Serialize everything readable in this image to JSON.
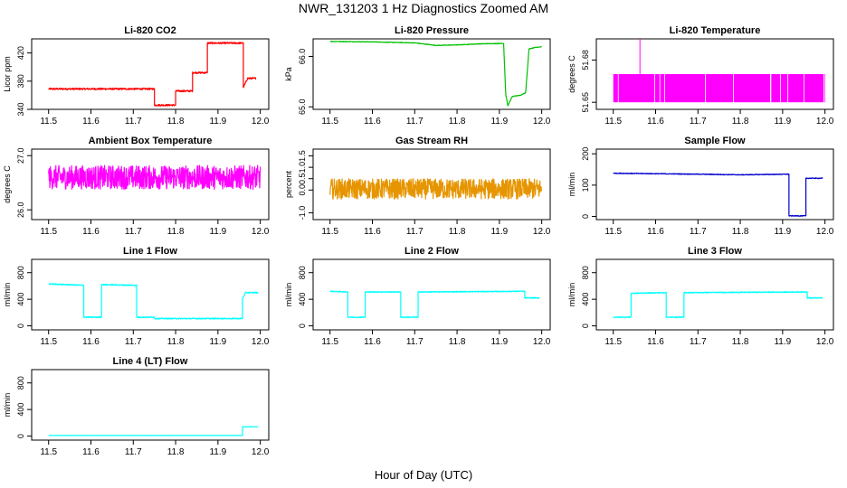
{
  "title": "NWR_131203  1 Hz Diagnostics Zoomed AM",
  "xlabel": "Hour of Day (UTC)",
  "chart_data": [
    {
      "type": "line",
      "title": "Li-820 CO2",
      "ylabel": "Licor ppm",
      "color": "#ff0000",
      "xlim": [
        11.46,
        12.02
      ],
      "ylim": [
        340,
        440
      ],
      "xticks": [
        11.5,
        11.6,
        11.7,
        11.8,
        11.9,
        12.0
      ],
      "xtick_labels": [
        "11.5",
        "11.6",
        "11.7",
        "11.8",
        "11.9",
        "12.0"
      ],
      "yticks": [
        340,
        380,
        420
      ],
      "ytick_labels": [
        "340",
        "380",
        "420"
      ],
      "noise": 1.2,
      "series": [
        {
          "x": [
            11.5,
            11.75,
            11.75,
            11.8,
            11.8,
            11.84,
            11.84,
            11.875,
            11.875,
            11.96,
            11.96,
            11.97,
            11.99
          ],
          "y": [
            369,
            369,
            346,
            346,
            366,
            366,
            392,
            392,
            434,
            434,
            371,
            384,
            384
          ]
        }
      ]
    },
    {
      "type": "line",
      "title": "Li-820 Pressure",
      "ylabel": "kPa",
      "color": "#00c000",
      "xlim": [
        11.46,
        12.02
      ],
      "ylim": [
        64.95,
        66.35
      ],
      "xticks": [
        11.5,
        11.6,
        11.7,
        11.8,
        11.9,
        12.0
      ],
      "xtick_labels": [
        "11.5",
        "11.6",
        "11.7",
        "11.8",
        "11.9",
        "12.0"
      ],
      "yticks": [
        65.0,
        66.0
      ],
      "ytick_labels": [
        "65.0",
        "66.0"
      ],
      "noise": 0.006,
      "series": [
        {
          "x": [
            11.5,
            11.6,
            11.7,
            11.75,
            11.8,
            11.85,
            11.91,
            11.915,
            11.92,
            11.93,
            11.94,
            11.95,
            11.962,
            11.97,
            11.985,
            12.0
          ],
          "y": [
            66.3,
            66.29,
            66.27,
            66.22,
            66.23,
            66.25,
            66.26,
            65.25,
            65.02,
            65.2,
            65.22,
            65.23,
            65.28,
            66.15,
            66.18,
            66.19
          ]
        }
      ]
    },
    {
      "type": "line",
      "title": "Li-820 Temperature",
      "ylabel": "degrees C",
      "color": "#ff00ff",
      "xlim": [
        11.46,
        12.02
      ],
      "ylim": [
        51.645,
        51.695
      ],
      "xticks": [
        11.5,
        11.6,
        11.7,
        11.8,
        11.9,
        12.0
      ],
      "xtick_labels": [
        "11.5",
        "11.6",
        "11.7",
        "11.8",
        "11.9",
        "12.0"
      ],
      "yticks": [
        51.65,
        51.68
      ],
      "ytick_labels": [
        "51.65",
        "51.68"
      ],
      "band": {
        "x": [
          11.5,
          12.0
        ],
        "low": 51.65,
        "high": 51.67
      },
      "spike": {
        "x": 11.563,
        "y": 51.695
      }
    },
    {
      "type": "line",
      "title": "Ambient Box Temperature",
      "ylabel": "degrees C",
      "color": "#ff00ff",
      "xlim": [
        11.46,
        12.02
      ],
      "ylim": [
        25.82,
        27.12
      ],
      "xticks": [
        11.5,
        11.6,
        11.7,
        11.8,
        11.9,
        12.0
      ],
      "xtick_labels": [
        "11.5",
        "11.6",
        "11.7",
        "11.8",
        "11.9",
        "12.0"
      ],
      "yticks": [
        26.0,
        27.0
      ],
      "ytick_labels": [
        "26.0",
        "27.0"
      ],
      "noise": 0.22,
      "series": [
        {
          "x": [
            11.5,
            12.0
          ],
          "y": [
            26.6,
            26.6
          ]
        }
      ]
    },
    {
      "type": "line",
      "title": "Gas Stream RH",
      "ylabel": "percent",
      "color": "#e69500",
      "xlim": [
        11.46,
        12.02
      ],
      "ylim": [
        -1.3,
        1.8
      ],
      "xticks": [
        11.5,
        11.6,
        11.7,
        11.8,
        11.9,
        12.0
      ],
      "xtick_labels": [
        "11.5",
        "11.6",
        "11.7",
        "11.8",
        "11.9",
        "12.0"
      ],
      "yticks": [
        -1.0,
        0.0,
        0.5,
        1.0,
        1.5
      ],
      "ytick_labels": [
        "-1.0",
        "0.0",
        "0.5",
        "1.0",
        "1.5"
      ],
      "noise": 0.45,
      "series": [
        {
          "x": [
            11.5,
            12.0
          ],
          "y": [
            0.05,
            0.05
          ]
        }
      ]
    },
    {
      "type": "line",
      "title": "Sample Flow",
      "ylabel": "ml/min",
      "color": "#0000cc",
      "xlim": [
        11.46,
        12.02
      ],
      "ylim": [
        -10,
        215
      ],
      "xticks": [
        11.5,
        11.6,
        11.7,
        11.8,
        11.9,
        12.0
      ],
      "xtick_labels": [
        "11.5",
        "11.6",
        "11.7",
        "11.8",
        "11.9",
        "12.0"
      ],
      "yticks": [
        0,
        100,
        200
      ],
      "ytick_labels": [
        "0",
        "100",
        "200"
      ],
      "noise": 1.2,
      "series": [
        {
          "x": [
            11.5,
            11.7,
            11.8,
            11.915,
            11.915,
            11.955,
            11.955,
            11.995
          ],
          "y": [
            138,
            135,
            133,
            135,
            2,
            2,
            122,
            122
          ]
        }
      ]
    },
    {
      "type": "line",
      "title": "Line 1 Flow",
      "ylabel": "ml/min",
      "color": "#00ffff",
      "xlim": [
        11.46,
        12.02
      ],
      "ylim": [
        -60,
        1000
      ],
      "xticks": [
        11.5,
        11.6,
        11.7,
        11.8,
        11.9,
        12.0
      ],
      "xtick_labels": [
        "11.5",
        "11.6",
        "11.7",
        "11.8",
        "11.9",
        "12.0"
      ],
      "yticks": [
        0,
        400,
        800
      ],
      "ytick_labels": [
        "0",
        "400",
        "800"
      ],
      "noise": 8,
      "series": [
        {
          "x": [
            11.5,
            11.583,
            11.583,
            11.625,
            11.625,
            11.708,
            11.708,
            11.75,
            11.75,
            11.958,
            11.958,
            11.965,
            11.995
          ],
          "y": [
            630,
            610,
            130,
            130,
            620,
            610,
            130,
            130,
            110,
            110,
            410,
            500,
            500
          ]
        }
      ]
    },
    {
      "type": "line",
      "title": "Line 2 Flow",
      "ylabel": "ml/min",
      "color": "#00ffff",
      "xlim": [
        11.46,
        12.02
      ],
      "ylim": [
        -60,
        1000
      ],
      "xticks": [
        11.5,
        11.6,
        11.7,
        11.8,
        11.9,
        12.0
      ],
      "xtick_labels": [
        "11.5",
        "11.6",
        "11.7",
        "11.8",
        "11.9",
        "12.0"
      ],
      "yticks": [
        0,
        400,
        800
      ],
      "ytick_labels": [
        "0",
        "400",
        "800"
      ],
      "noise": 7,
      "series": [
        {
          "x": [
            11.5,
            11.542,
            11.542,
            11.583,
            11.583,
            11.667,
            11.667,
            11.708,
            11.708,
            11.96,
            11.96,
            11.995
          ],
          "y": [
            520,
            510,
            130,
            130,
            510,
            510,
            130,
            130,
            510,
            520,
            420,
            420
          ]
        }
      ]
    },
    {
      "type": "line",
      "title": "Line 3 Flow",
      "ylabel": "ml/min",
      "color": "#00ffff",
      "xlim": [
        11.46,
        12.02
      ],
      "ylim": [
        -60,
        1000
      ],
      "xticks": [
        11.5,
        11.6,
        11.7,
        11.8,
        11.9,
        12.0
      ],
      "xtick_labels": [
        "11.5",
        "11.6",
        "11.7",
        "11.8",
        "11.9",
        "12.0"
      ],
      "yticks": [
        0,
        400,
        800
      ],
      "ytick_labels": [
        "0",
        "400",
        "800"
      ],
      "noise": 7,
      "series": [
        {
          "x": [
            11.5,
            11.542,
            11.542,
            11.625,
            11.625,
            11.667,
            11.667,
            11.958,
            11.958,
            11.995
          ],
          "y": [
            130,
            130,
            490,
            500,
            130,
            130,
            500,
            510,
            420,
            420
          ]
        }
      ]
    },
    {
      "type": "line",
      "title": "Line 4 (LT) Flow",
      "ylabel": "ml/min",
      "color": "#00ffff",
      "xlim": [
        11.46,
        12.02
      ],
      "ylim": [
        -60,
        1000
      ],
      "xticks": [
        11.5,
        11.6,
        11.7,
        11.8,
        11.9,
        12.0
      ],
      "xtick_labels": [
        "11.5",
        "11.6",
        "11.7",
        "11.8",
        "11.9",
        "12.0"
      ],
      "yticks": [
        0,
        400,
        800
      ],
      "ytick_labels": [
        "0",
        "400",
        "800"
      ],
      "noise": 2,
      "series": [
        {
          "x": [
            11.5,
            11.958,
            11.958,
            11.995
          ],
          "y": [
            10,
            10,
            140,
            140
          ]
        }
      ]
    }
  ]
}
